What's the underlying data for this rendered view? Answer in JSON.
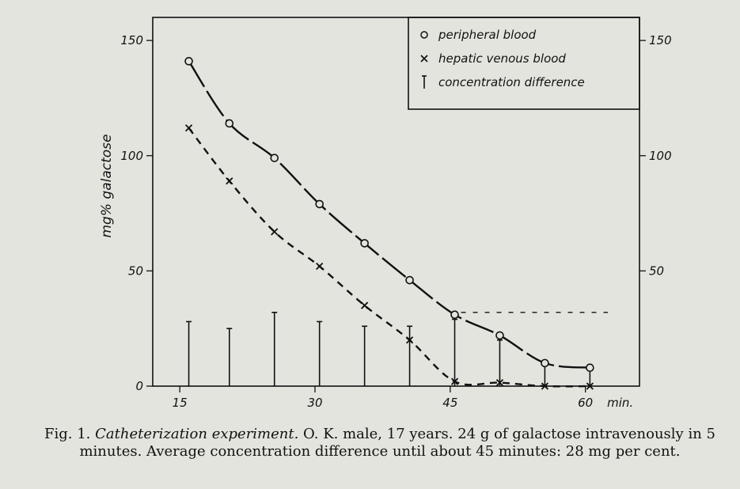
{
  "chart_data": {
    "type": "line",
    "ylabel": "mg% galactose",
    "x_unit_label": "min.",
    "xlim": [
      12,
      66
    ],
    "ylim": [
      0,
      160
    ],
    "x_ticks": [
      15,
      30,
      45,
      60
    ],
    "y_ticks": [
      0,
      50,
      100,
      150
    ],
    "right_axis_ticks": [
      50,
      100,
      150
    ],
    "legend_position": "top-right",
    "legend": [
      {
        "marker": "circle",
        "label": "peripheral blood"
      },
      {
        "marker": "cross",
        "label": "hepatic venous blood"
      },
      {
        "marker": "bar",
        "label": "concentration difference"
      }
    ],
    "series": [
      {
        "name": "peripheral blood",
        "marker": "circle",
        "line": "solid",
        "x": [
          16,
          20.5,
          25.5,
          30.5,
          35.5,
          40.5,
          45.5,
          50.5,
          55.5,
          60.5
        ],
        "y": [
          141,
          114,
          99,
          79,
          62,
          46,
          31,
          22,
          10,
          8
        ]
      },
      {
        "name": "hepatic venous blood",
        "marker": "cross",
        "line": "dashed",
        "x": [
          16,
          20.5,
          25.5,
          30.5,
          35.5,
          40.5,
          45.5,
          50.5,
          55.5,
          60.5
        ],
        "y": [
          112,
          89,
          67,
          52,
          35,
          20,
          2,
          1.5,
          0,
          0
        ]
      }
    ],
    "concentration_difference": {
      "x": [
        16,
        20.5,
        25.5,
        30.5,
        35.5,
        40.5,
        45.5,
        50.5,
        55.5,
        60.5
      ],
      "y": [
        28,
        25,
        32,
        28,
        26,
        26,
        29,
        20,
        10,
        8
      ]
    },
    "average_line": {
      "x_start": 45.5,
      "x_end": 62.5,
      "y": 32
    }
  },
  "caption": {
    "prefix": "Fig. 1. ",
    "italic": "Catheterization experiment.",
    "rest": " O. K. male, 17 years. 24 g of galactose intravenously in 5 minutes. Average concentration difference until about 45 minutes: 28 mg per cent."
  }
}
